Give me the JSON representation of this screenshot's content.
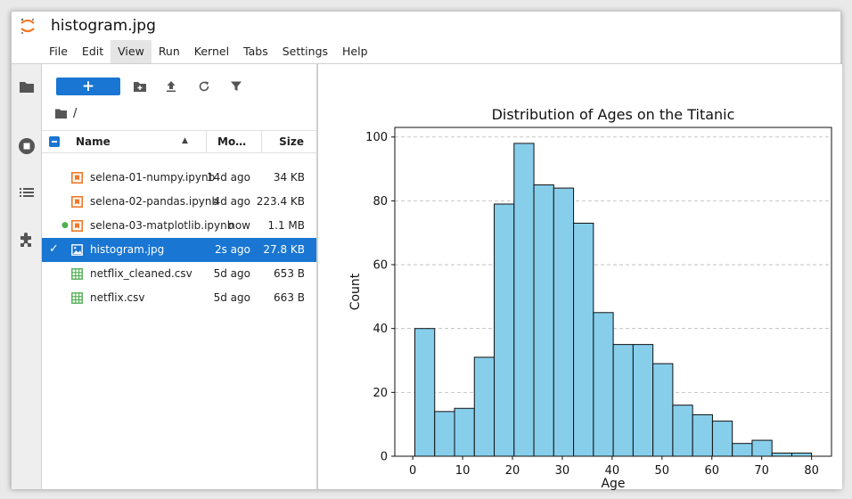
{
  "window": {
    "title": "histogram.jpg"
  },
  "menu": [
    "File",
    "Edit",
    "View",
    "Run",
    "Kernel",
    "Tabs",
    "Settings",
    "Help"
  ],
  "toolbar": {
    "new_label": "+"
  },
  "breadcrumb": {
    "path": "/"
  },
  "file_browser": {
    "columns": {
      "name": "Name",
      "modified": "Mo…",
      "size": "Size"
    },
    "files": [
      {
        "name": "selena-01-numpy.ipynb",
        "modified": "14d ago",
        "size": "34 KB",
        "type": "notebook",
        "running": false,
        "selected": false
      },
      {
        "name": "selena-02-pandas.ipynb",
        "modified": "4d ago",
        "size": "223.4 KB",
        "type": "notebook",
        "running": false,
        "selected": false
      },
      {
        "name": "selena-03-matplotlib.ipynb",
        "modified": "now",
        "size": "1.1 MB",
        "type": "notebook",
        "running": true,
        "selected": false
      },
      {
        "name": "histogram.jpg",
        "modified": "2s ago",
        "size": "27.8 KB",
        "type": "image",
        "running": false,
        "selected": true
      },
      {
        "name": "netflix_cleaned.csv",
        "modified": "5d ago",
        "size": "653 B",
        "type": "csv",
        "running": false,
        "selected": false
      },
      {
        "name": "netflix.csv",
        "modified": "5d ago",
        "size": "663 B",
        "type": "csv",
        "running": false,
        "selected": false
      }
    ]
  },
  "icons": {
    "activity": [
      "folder-icon",
      "running-icon",
      "toc-icon",
      "extension-icon"
    ],
    "toolbar": [
      "new-folder-icon",
      "upload-icon",
      "refresh-icon",
      "filter-icon"
    ]
  },
  "colors": {
    "accent": "#1976d2",
    "bar_fill": "#87ceeb",
    "notebook": "#f37726",
    "csv": "#4caf50"
  },
  "chart_data": {
    "type": "bar",
    "title": "Distribution of Ages on the Titanic",
    "xlabel": "Age",
    "ylabel": "Count",
    "bin_edges": [
      0.42,
      4.4,
      8.38,
      12.36,
      16.34,
      20.32,
      24.3,
      28.28,
      32.26,
      36.24,
      40.22,
      44.2,
      48.18,
      52.16,
      56.14,
      60.12,
      64.1,
      68.08,
      72.06,
      76.04,
      80.0
    ],
    "values": [
      40,
      14,
      15,
      31,
      79,
      98,
      85,
      84,
      73,
      45,
      35,
      35,
      29,
      16,
      13,
      11,
      4,
      5,
      1,
      1
    ],
    "xticks": [
      0,
      10,
      20,
      30,
      40,
      50,
      60,
      70,
      80
    ],
    "yticks": [
      0,
      20,
      40,
      60,
      80,
      100
    ],
    "xlim": [
      -3.6,
      84.0
    ],
    "ylim": [
      0,
      103
    ],
    "grid": "y-dashed"
  }
}
